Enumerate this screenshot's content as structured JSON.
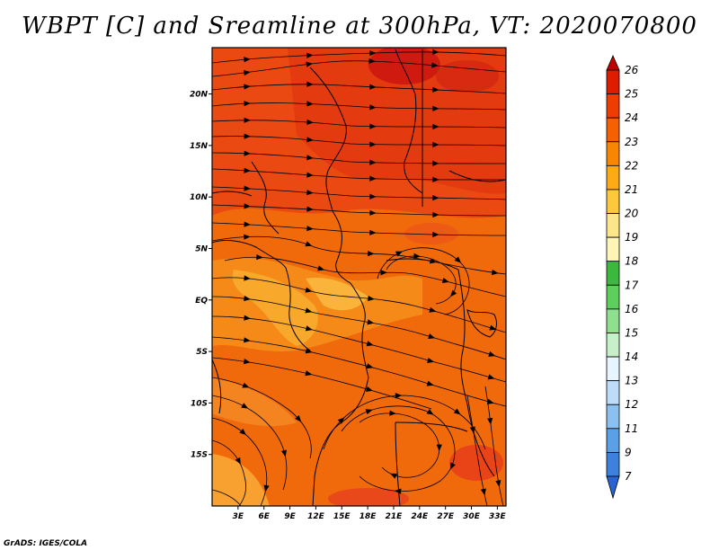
{
  "title": "WBPT [C] and Sreamline at 300hPa, VT: 2020070800",
  "credit": "GrADS: IGES/COLA",
  "map": {
    "lat_labels": [
      "20N",
      "15N",
      "10N",
      "5N",
      "EQ",
      "5S",
      "10S",
      "15S"
    ],
    "lat_values": [
      20,
      15,
      10,
      5,
      0,
      -5,
      -10,
      -15
    ],
    "lon_labels": [
      "3E",
      "6E",
      "9E",
      "12E",
      "15E",
      "18E",
      "21E",
      "24E",
      "27E",
      "30E",
      "33E"
    ],
    "lon_values": [
      3,
      6,
      9,
      12,
      15,
      18,
      21,
      24,
      27,
      30,
      33
    ],
    "lon_range": [
      0,
      34
    ],
    "lat_range": [
      -20,
      24.5
    ]
  },
  "colorbar": {
    "labels": [
      "26",
      "25",
      "24",
      "23",
      "22",
      "21",
      "20",
      "19",
      "18",
      "17",
      "16",
      "15",
      "14",
      "13",
      "12",
      "11",
      "9",
      "7"
    ],
    "colors": [
      "#c00000",
      "#dd1c00",
      "#ee3d00",
      "#f56000",
      "#f88600",
      "#fdaa14",
      "#fdc83c",
      "#fde58a",
      "#fff5b4",
      "#3cb93c",
      "#5ccf5c",
      "#8ee08e",
      "#c8f0c8",
      "#e6f5ff",
      "#bcdcfa",
      "#8cc0f0",
      "#5aa0e6",
      "#3c82dc",
      "#2864d2"
    ]
  }
}
